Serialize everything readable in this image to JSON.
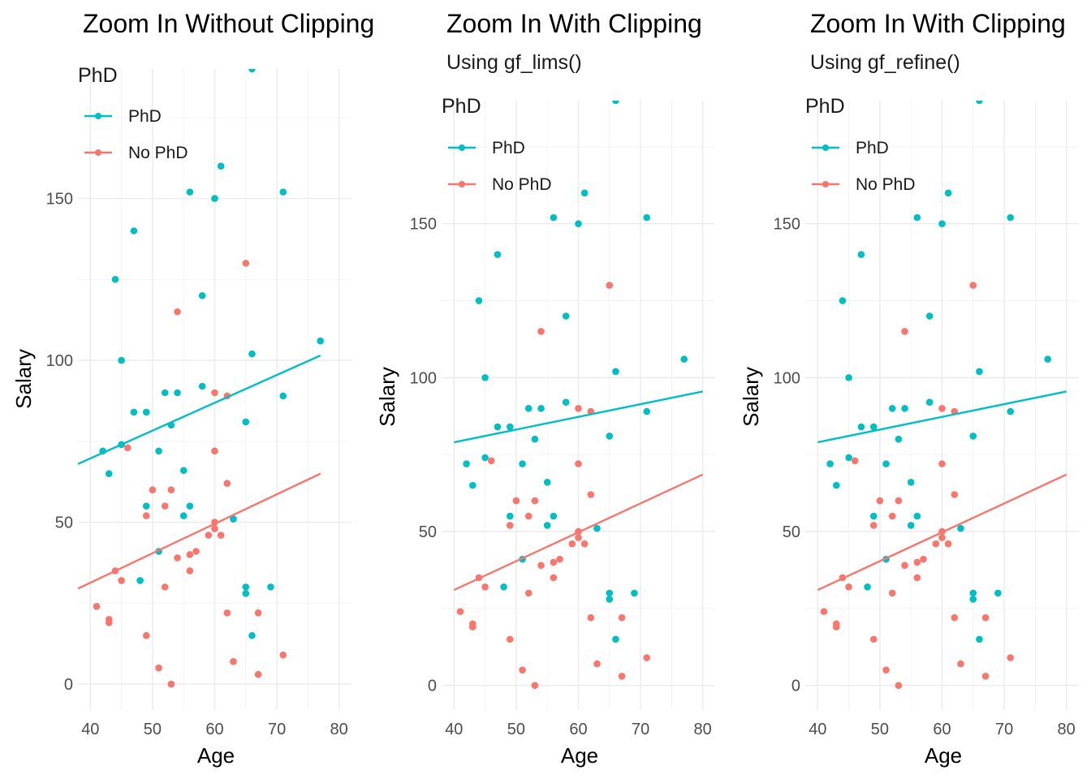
{
  "colors": {
    "phd": "#00BFC4",
    "no_phd": "#F8766D"
  },
  "chart_data": [
    {
      "type": "scatter",
      "title": "Zoom In Without Clipping",
      "subtitle": "",
      "xlabel": "Age",
      "ylabel": "Salary",
      "xlim": [
        38,
        82
      ],
      "ylim": [
        -8,
        190
      ],
      "x_ticks": [
        40,
        50,
        60,
        70,
        80
      ],
      "y_ticks": [
        0,
        50,
        100,
        150
      ],
      "legend": {
        "title": "PhD",
        "position": "top-left",
        "entries": [
          "PhD",
          "No PhD"
        ]
      },
      "lines": {
        "phd": [
          [
            38,
            68
          ],
          [
            77,
            101.5
          ]
        ],
        "no_phd": [
          [
            38,
            29.5
          ],
          [
            77,
            65
          ]
        ]
      },
      "grid": true
    },
    {
      "type": "scatter",
      "title": "Zoom In With Clipping",
      "subtitle": "Using gf_lims()",
      "xlabel": "Age",
      "ylabel": "Salary",
      "xlim": [
        38,
        82
      ],
      "ylim": [
        -8,
        190
      ],
      "x_ticks": [
        40,
        50,
        60,
        70,
        80
      ],
      "y_ticks": [
        0,
        50,
        100,
        150
      ],
      "legend": {
        "title": "PhD",
        "position": "top-left",
        "entries": [
          "PhD",
          "No PhD"
        ]
      },
      "lines": {
        "phd": [
          [
            40,
            79
          ],
          [
            80,
            95.5
          ]
        ],
        "no_phd": [
          [
            40,
            31
          ],
          [
            80,
            68.5
          ]
        ]
      },
      "grid": true
    },
    {
      "type": "scatter",
      "title": "Zoom In With Clipping",
      "subtitle": "Using gf_refine()",
      "xlabel": "Age",
      "ylabel": "Salary",
      "xlim": [
        38,
        82
      ],
      "ylim": [
        -8,
        190
      ],
      "x_ticks": [
        40,
        50,
        60,
        70,
        80
      ],
      "y_ticks": [
        0,
        50,
        100,
        150
      ],
      "legend": {
        "title": "PhD",
        "position": "top-left",
        "entries": [
          "PhD",
          "No PhD"
        ]
      },
      "lines": {
        "phd": [
          [
            40,
            79
          ],
          [
            80,
            95.5
          ]
        ],
        "no_phd": [
          [
            40,
            31
          ],
          [
            80,
            68.5
          ]
        ]
      },
      "grid": true
    }
  ],
  "points": {
    "phd": [
      [
        42,
        72
      ],
      [
        43,
        65
      ],
      [
        44,
        125
      ],
      [
        45,
        100
      ],
      [
        45,
        74
      ],
      [
        47,
        84
      ],
      [
        47,
        140
      ],
      [
        48,
        32
      ],
      [
        49,
        84
      ],
      [
        49,
        55
      ],
      [
        51,
        72
      ],
      [
        51,
        41
      ],
      [
        52,
        90
      ],
      [
        53,
        80
      ],
      [
        54,
        90
      ],
      [
        55,
        66
      ],
      [
        55,
        52
      ],
      [
        56,
        152
      ],
      [
        56,
        55
      ],
      [
        58,
        120
      ],
      [
        58,
        92
      ],
      [
        60,
        150
      ],
      [
        61,
        160
      ],
      [
        63,
        51
      ],
      [
        65,
        81
      ],
      [
        65,
        30
      ],
      [
        65,
        28
      ],
      [
        66,
        102
      ],
      [
        66,
        190
      ],
      [
        66,
        15
      ],
      [
        69,
        30
      ],
      [
        71,
        152
      ],
      [
        71,
        89
      ],
      [
        77,
        106
      ]
    ],
    "no_phd": [
      [
        41,
        24
      ],
      [
        43,
        20
      ],
      [
        43,
        19
      ],
      [
        44,
        35
      ],
      [
        45,
        32
      ],
      [
        46,
        73
      ],
      [
        49,
        52
      ],
      [
        49,
        15
      ],
      [
        50,
        60
      ],
      [
        51,
        5
      ],
      [
        52,
        55
      ],
      [
        52,
        30
      ],
      [
        53,
        0
      ],
      [
        53,
        60
      ],
      [
        54,
        115
      ],
      [
        54,
        39
      ],
      [
        56,
        40
      ],
      [
        56,
        35
      ],
      [
        57,
        41
      ],
      [
        59,
        46
      ],
      [
        60,
        90
      ],
      [
        60,
        50
      ],
      [
        60,
        48
      ],
      [
        60,
        72
      ],
      [
        61,
        46
      ],
      [
        62,
        89
      ],
      [
        62,
        62
      ],
      [
        62,
        22
      ],
      [
        63,
        7
      ],
      [
        65,
        130
      ],
      [
        67,
        22
      ],
      [
        67,
        3
      ],
      [
        71,
        9
      ]
    ]
  }
}
